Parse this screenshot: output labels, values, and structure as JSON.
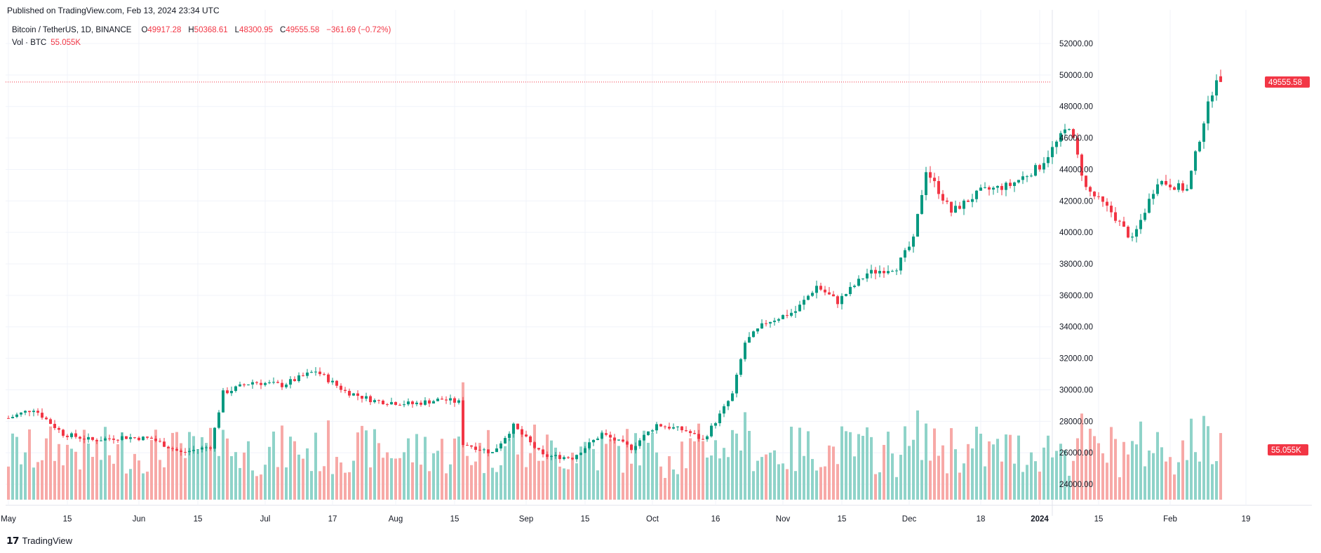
{
  "header": {
    "published": "Published on TradingView.com, Feb 13, 2024 23:34 UTC"
  },
  "legend": {
    "symbol": "Bitcoin / TetherUS, 1D, BINANCE",
    "o_label": "O",
    "o_value": "49917.28",
    "h_label": "H",
    "h_value": "50368.61",
    "l_label": "L",
    "l_value": "48300.95",
    "c_label": "C",
    "c_value": "49555.58",
    "change": "−361.69 (−0.72%)",
    "vol_label": "Vol · BTC",
    "vol_value": "55.055K"
  },
  "footer": {
    "logo": "TradingView"
  },
  "colors": {
    "up": "#089981",
    "down": "#f23645",
    "vol_up": "#8fd3c9",
    "vol_down": "#f7a9a7",
    "grid": "#f0f3fa"
  },
  "chart_data": {
    "type": "candlestick",
    "y_axis": {
      "ticks": [
        "24000.00",
        "26000.00",
        "28000.00",
        "30000.00",
        "32000.00",
        "34000.00",
        "36000.00",
        "38000.00",
        "40000.00",
        "42000.00",
        "44000.00",
        "46000.00",
        "48000.00",
        "50000.00",
        "52000.00"
      ],
      "ylim": [
        22000,
        53000
      ]
    },
    "x_axis": {
      "ticks": [
        "May",
        "15",
        "Jun",
        "15",
        "Jul",
        "17",
        "Aug",
        "15",
        "Sep",
        "15",
        "Oct",
        "16",
        "Nov",
        "15",
        "Dec",
        "18",
        "2024",
        "15",
        "Feb",
        "19"
      ]
    },
    "last_price_label": "49555.58",
    "last_volume_label": "55.055K",
    "close_series": [
      {
        "date": "2023-05-01",
        "close": 28200
      },
      {
        "date": "2023-05-07",
        "close": 28800
      },
      {
        "date": "2023-05-14",
        "close": 27200
      },
      {
        "date": "2023-05-21",
        "close": 26800
      },
      {
        "date": "2023-05-28",
        "close": 27000
      },
      {
        "date": "2023-06-04",
        "close": 26900
      },
      {
        "date": "2023-06-11",
        "close": 26000
      },
      {
        "date": "2023-06-18",
        "close": 26400
      },
      {
        "date": "2023-06-21",
        "close": 29800
      },
      {
        "date": "2023-06-28",
        "close": 30500
      },
      {
        "date": "2023-07-05",
        "close": 30300
      },
      {
        "date": "2023-07-13",
        "close": 31200
      },
      {
        "date": "2023-07-20",
        "close": 29900
      },
      {
        "date": "2023-07-27",
        "close": 29300
      },
      {
        "date": "2023-08-05",
        "close": 29100
      },
      {
        "date": "2023-08-12",
        "close": 29400
      },
      {
        "date": "2023-08-16",
        "close": 29200
      },
      {
        "date": "2023-08-17",
        "close": 26600
      },
      {
        "date": "2023-08-24",
        "close": 26000
      },
      {
        "date": "2023-08-29",
        "close": 27700
      },
      {
        "date": "2023-09-05",
        "close": 25800
      },
      {
        "date": "2023-09-12",
        "close": 25700
      },
      {
        "date": "2023-09-19",
        "close": 27200
      },
      {
        "date": "2023-09-26",
        "close": 26300
      },
      {
        "date": "2023-10-02",
        "close": 27800
      },
      {
        "date": "2023-10-09",
        "close": 27400
      },
      {
        "date": "2023-10-13",
        "close": 26800
      },
      {
        "date": "2023-10-17",
        "close": 28400
      },
      {
        "date": "2023-10-20",
        "close": 29700
      },
      {
        "date": "2023-10-23",
        "close": 33000
      },
      {
        "date": "2023-10-28",
        "close": 34300
      },
      {
        "date": "2023-11-04",
        "close": 35000
      },
      {
        "date": "2023-11-09",
        "close": 36600
      },
      {
        "date": "2023-11-14",
        "close": 35600
      },
      {
        "date": "2023-11-21",
        "close": 37400
      },
      {
        "date": "2023-11-28",
        "close": 37800
      },
      {
        "date": "2023-12-02",
        "close": 39500
      },
      {
        "date": "2023-12-05",
        "close": 44000
      },
      {
        "date": "2023-12-11",
        "close": 41300
      },
      {
        "date": "2023-12-18",
        "close": 42600
      },
      {
        "date": "2023-12-25",
        "close": 43000
      },
      {
        "date": "2024-01-01",
        "close": 44200
      },
      {
        "date": "2024-01-08",
        "close": 46800
      },
      {
        "date": "2024-01-12",
        "close": 42800
      },
      {
        "date": "2024-01-18",
        "close": 41300
      },
      {
        "date": "2024-01-23",
        "close": 39500
      },
      {
        "date": "2024-01-29",
        "close": 43300
      },
      {
        "date": "2024-02-05",
        "close": 42700
      },
      {
        "date": "2024-02-09",
        "close": 47100
      },
      {
        "date": "2024-02-12",
        "close": 49917
      },
      {
        "date": "2024-02-13",
        "close": 49556
      }
    ]
  }
}
